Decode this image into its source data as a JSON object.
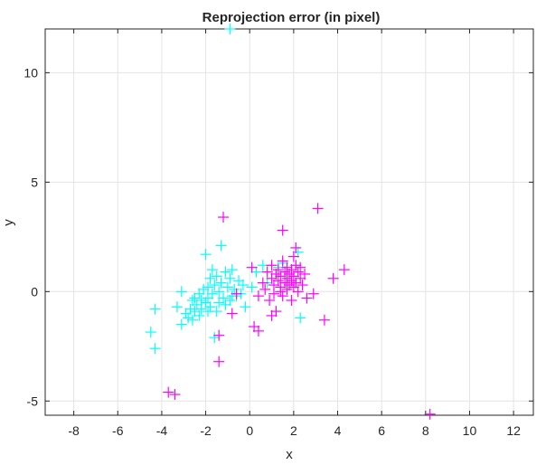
{
  "chart_data": {
    "type": "scatter",
    "title": "Reprojection error (in pixel)",
    "xlabel": "x",
    "ylabel": "y",
    "xlim": [
      -9.3,
      12.9
    ],
    "ylim": [
      -5.65,
      12.0
    ],
    "xticks": [
      -8,
      -6,
      -4,
      -2,
      0,
      2,
      4,
      6,
      8,
      10,
      12
    ],
    "yticks": [
      -5,
      0,
      5,
      10
    ],
    "xtick_labels": [
      "-8",
      "-6",
      "-4",
      "-2",
      "0",
      "2",
      "4",
      "6",
      "8",
      "10",
      "12"
    ],
    "ytick_labels": [
      "-5",
      "0",
      "5",
      "10"
    ],
    "grid": true,
    "marker": "+",
    "series": [
      {
        "color": "#00ffff",
        "points": [
          [
            -0.9,
            12.0
          ],
          [
            -4.5,
            -1.85
          ],
          [
            -4.3,
            -0.8
          ],
          [
            -4.3,
            -2.6
          ],
          [
            -3.3,
            -0.7
          ],
          [
            -3.1,
            0.0
          ],
          [
            -3.1,
            -1.5
          ],
          [
            -2.9,
            -1.0
          ],
          [
            -2.8,
            -1.2
          ],
          [
            -2.7,
            -0.8
          ],
          [
            -2.6,
            -1.3
          ],
          [
            -2.5,
            -0.3
          ],
          [
            -2.5,
            -0.9
          ],
          [
            -2.4,
            -0.6
          ],
          [
            -2.3,
            -0.1
          ],
          [
            -2.3,
            -1.1
          ],
          [
            -2.2,
            -0.4
          ],
          [
            -2.1,
            0.1
          ],
          [
            -2.0,
            -0.5
          ],
          [
            -2.0,
            1.7
          ],
          [
            -1.9,
            0.2
          ],
          [
            -1.9,
            -0.3
          ],
          [
            -1.8,
            0.6
          ],
          [
            -1.8,
            -0.7
          ],
          [
            -1.7,
            1.0
          ],
          [
            -1.7,
            -0.1
          ],
          [
            -1.6,
            0.3
          ],
          [
            -1.6,
            -2.1
          ],
          [
            -1.5,
            0.7
          ],
          [
            -1.5,
            -0.9
          ],
          [
            -1.4,
            0.0
          ],
          [
            -1.3,
            2.1
          ],
          [
            -1.3,
            0.4
          ],
          [
            -1.2,
            -0.3
          ],
          [
            -1.1,
            0.9
          ],
          [
            -1.1,
            -0.6
          ],
          [
            -1.0,
            0.2
          ],
          [
            -0.9,
            0.6
          ],
          [
            -0.9,
            -0.4
          ],
          [
            -0.8,
            1.0
          ],
          [
            -0.7,
            0.1
          ],
          [
            -0.6,
            -0.2
          ],
          [
            -0.5,
            0.5
          ],
          [
            -0.4,
            -0.1
          ],
          [
            -0.3,
            0.3
          ],
          [
            -0.2,
            -0.7
          ],
          [
            0.1,
            0.2
          ],
          [
            0.3,
            0.9
          ],
          [
            0.6,
            1.2
          ],
          [
            0.8,
            0.4
          ],
          [
            1.3,
            1.1
          ],
          [
            1.5,
            1.3
          ],
          [
            2.2,
            1.8
          ],
          [
            2.3,
            -1.2
          ],
          [
            -2.6,
            -0.4
          ],
          [
            -2.2,
            -0.8
          ],
          [
            -1.9,
            -0.9
          ],
          [
            -1.4,
            -0.5
          ],
          [
            -0.8,
            -0.2
          ]
        ]
      },
      {
        "color": "#ff00ff",
        "points": [
          [
            -3.7,
            -4.6
          ],
          [
            -3.4,
            -4.7
          ],
          [
            -1.4,
            -3.2
          ],
          [
            -1.2,
            3.4
          ],
          [
            -1.4,
            -2.0
          ],
          [
            -0.8,
            -1.0
          ],
          [
            -0.6,
            -0.1
          ],
          [
            0.2,
            -1.6
          ],
          [
            0.4,
            -1.8
          ],
          [
            0.1,
            1.1
          ],
          [
            0.4,
            -0.2
          ],
          [
            0.6,
            0.4
          ],
          [
            0.7,
            0.1
          ],
          [
            0.8,
            0.9
          ],
          [
            0.9,
            -0.4
          ],
          [
            1.0,
            0.6
          ],
          [
            1.0,
            1.2
          ],
          [
            1.1,
            -0.1
          ],
          [
            1.1,
            0.3
          ],
          [
            1.2,
            0.8
          ],
          [
            1.2,
            -0.9
          ],
          [
            1.3,
            0.5
          ],
          [
            1.3,
            1.0
          ],
          [
            1.4,
            0.2
          ],
          [
            1.4,
            0.7
          ],
          [
            1.5,
            1.4
          ],
          [
            1.5,
            -0.2
          ],
          [
            1.5,
            2.8
          ],
          [
            1.6,
            0.4
          ],
          [
            1.6,
            0.9
          ],
          [
            1.7,
            0.1
          ],
          [
            1.7,
            0.6
          ],
          [
            1.7,
            1.1
          ],
          [
            1.8,
            0.3
          ],
          [
            1.8,
            0.8
          ],
          [
            1.9,
            -0.4
          ],
          [
            1.9,
            0.5
          ],
          [
            1.9,
            1.0
          ],
          [
            2.0,
            0.2
          ],
          [
            2.0,
            0.7
          ],
          [
            2.1,
            1.2
          ],
          [
            2.1,
            0.4
          ],
          [
            2.1,
            2.0
          ],
          [
            2.2,
            0.9
          ],
          [
            2.2,
            0.0
          ],
          [
            2.3,
            0.6
          ],
          [
            2.3,
            1.1
          ],
          [
            2.4,
            0.3
          ],
          [
            2.5,
            0.8
          ],
          [
            2.6,
            -0.3
          ],
          [
            2.9,
            -0.1
          ],
          [
            3.1,
            3.8
          ],
          [
            3.4,
            -1.3
          ],
          [
            3.8,
            0.6
          ],
          [
            4.3,
            1.0
          ],
          [
            8.2,
            -5.6
          ],
          [
            1.0,
            -1.1
          ],
          [
            2.0,
            1.6
          ],
          [
            1.4,
            0.0
          ]
        ]
      }
    ]
  }
}
